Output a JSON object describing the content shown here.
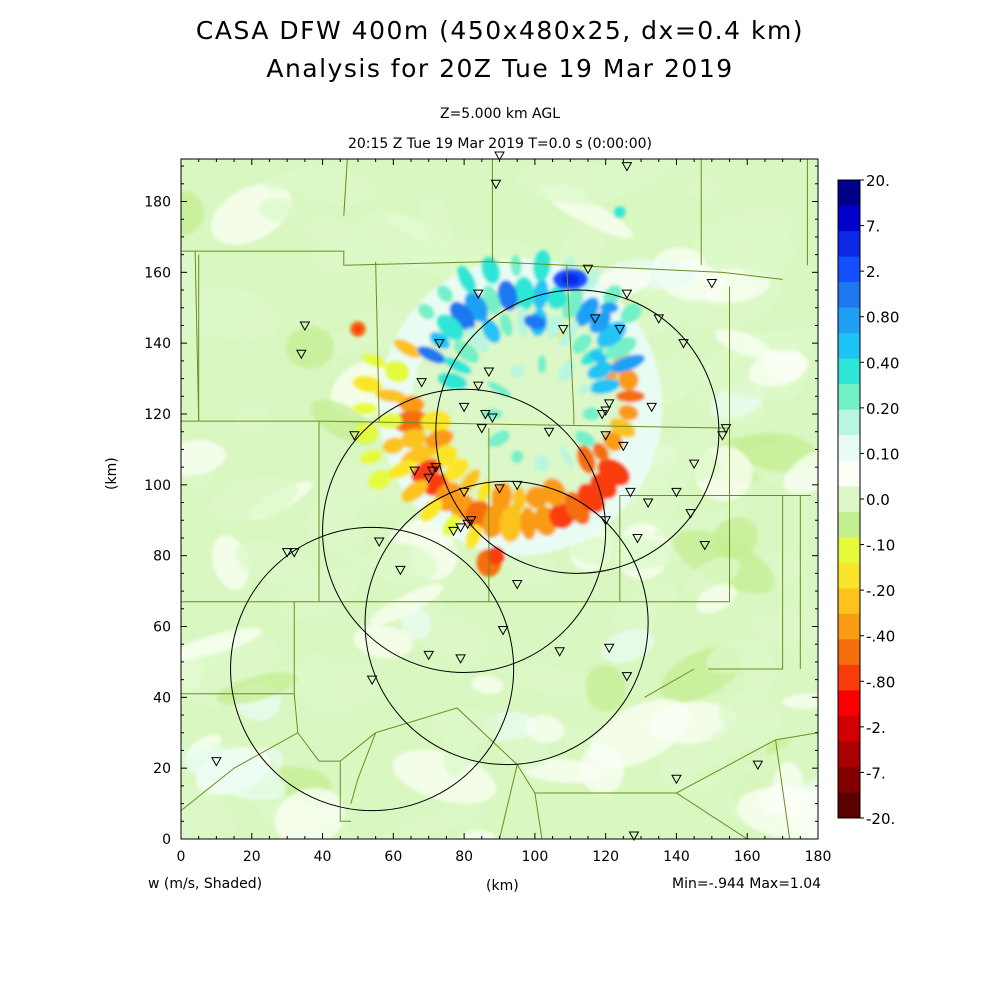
{
  "title_line1": "CASA DFW 400m (450x480x25, dx=0.4 km)",
  "title_line2": "Analysis for 20Z Tue 19 Mar 2019",
  "level_label": "Z=5.000 km AGL",
  "time_label": "20:15 Z Tue 19 Mar 2019    T=0.0 s (0:00:00)",
  "field_label": "w (m/s, Shaded)",
  "xlabel": "(km)",
  "ylabel": "(km)",
  "minmax_label": "Min=-.944  Max=1.04",
  "colors": {
    "background_field": "#d9f7c0",
    "mesh": "#6b8e23"
  },
  "chart_data": {
    "type": "heatmap",
    "title": "CASA DFW 400m (450x480x25, dx=0.4 km)",
    "xlabel": "(km)",
    "ylabel": "(km)",
    "xlim": [
      0,
      180
    ],
    "ylim": [
      0,
      192
    ],
    "xticks": [
      "0",
      "20",
      "40",
      "60",
      "80",
      "100",
      "120",
      "140",
      "160",
      "180"
    ],
    "yticks": [
      "0",
      "20",
      "40",
      "60",
      "80",
      "100",
      "120",
      "140",
      "160",
      "180"
    ],
    "field": "w (m/s, Shaded)",
    "min": -0.944,
    "max": 1.04,
    "colorbar": {
      "labels": [
        "20.",
        "7.",
        "2.",
        "0.80",
        "0.40",
        "0.20",
        "0.10",
        "0.0",
        "-.10",
        "-.20",
        "-.40",
        "-.80",
        "-2.",
        "-7.",
        "-20."
      ],
      "colors": [
        "#00008b",
        "#0000cd",
        "#0a28e6",
        "#1450ff",
        "#1e78f0",
        "#1fa0f5",
        "#20c3f5",
        "#2ee6d6",
        "#74f0c8",
        "#b8f6e0",
        "#e9fcf4",
        "#fbfff5",
        "#dcf8c8",
        "#c3ee91",
        "#e6fa3c",
        "#fae628",
        "#fcc31e",
        "#fa9b14",
        "#f56e0c",
        "#fa3c0a",
        "#fa0000",
        "#d20000",
        "#aa0000",
        "#840000",
        "#5a0000"
      ]
    },
    "radar_range_rings": [
      {
        "center": [
          112,
          115
        ],
        "radius": 40
      },
      {
        "center": [
          80,
          87
        ],
        "radius": 40
      },
      {
        "center": [
          54,
          48
        ],
        "radius": 40
      },
      {
        "center": [
          92,
          61
        ],
        "radius": 40
      }
    ],
    "stations": [
      [
        90,
        193
      ],
      [
        89,
        185
      ],
      [
        126,
        190
      ],
      [
        115,
        161
      ],
      [
        84,
        154
      ],
      [
        126,
        154
      ],
      [
        135,
        147
      ],
      [
        150,
        157
      ],
      [
        35,
        145
      ],
      [
        34,
        137
      ],
      [
        73,
        140
      ],
      [
        108,
        144
      ],
      [
        117,
        147
      ],
      [
        124,
        144
      ],
      [
        142,
        140
      ],
      [
        68,
        129
      ],
      [
        84,
        128
      ],
      [
        87,
        132
      ],
      [
        80,
        122
      ],
      [
        86,
        120
      ],
      [
        88,
        119
      ],
      [
        85,
        116
      ],
      [
        121,
        123
      ],
      [
        120,
        121
      ],
      [
        119,
        120
      ],
      [
        133,
        122
      ],
      [
        49,
        114
      ],
      [
        104,
        115
      ],
      [
        120,
        114
      ],
      [
        125,
        111
      ],
      [
        153,
        114
      ],
      [
        154,
        116
      ],
      [
        145,
        106
      ],
      [
        66,
        104
      ],
      [
        72,
        105
      ],
      [
        71,
        104
      ],
      [
        70,
        102
      ],
      [
        80,
        98
      ],
      [
        90,
        99
      ],
      [
        95,
        100
      ],
      [
        127,
        98
      ],
      [
        132,
        95
      ],
      [
        140,
        98
      ],
      [
        144,
        92
      ],
      [
        148,
        83
      ],
      [
        82,
        90
      ],
      [
        81,
        89
      ],
      [
        79,
        88
      ],
      [
        77,
        87
      ],
      [
        120,
        90
      ],
      [
        129,
        85
      ],
      [
        56,
        84
      ],
      [
        30,
        81
      ],
      [
        32,
        81
      ],
      [
        62,
        76
      ],
      [
        95,
        72
      ],
      [
        91,
        59
      ],
      [
        70,
        52
      ],
      [
        79,
        51
      ],
      [
        107,
        53
      ],
      [
        121,
        54
      ],
      [
        126,
        46
      ],
      [
        54,
        45
      ],
      [
        10,
        22
      ],
      [
        140,
        17
      ],
      [
        163,
        21
      ],
      [
        128,
        1
      ]
    ],
    "features": [
      {
        "kind": "updraft_rings",
        "center": [
          88,
          113
        ],
        "sign": "negative",
        "peak": -0.944
      },
      {
        "kind": "updraft_rings",
        "center": [
          105,
          135
        ],
        "sign": "positive",
        "peak": 1.04
      },
      {
        "kind": "max_core",
        "at": [
          110,
          158
        ],
        "sign": "positive"
      },
      {
        "kind": "min_core",
        "at": [
          50,
          144
        ],
        "sign": "negative"
      }
    ]
  }
}
